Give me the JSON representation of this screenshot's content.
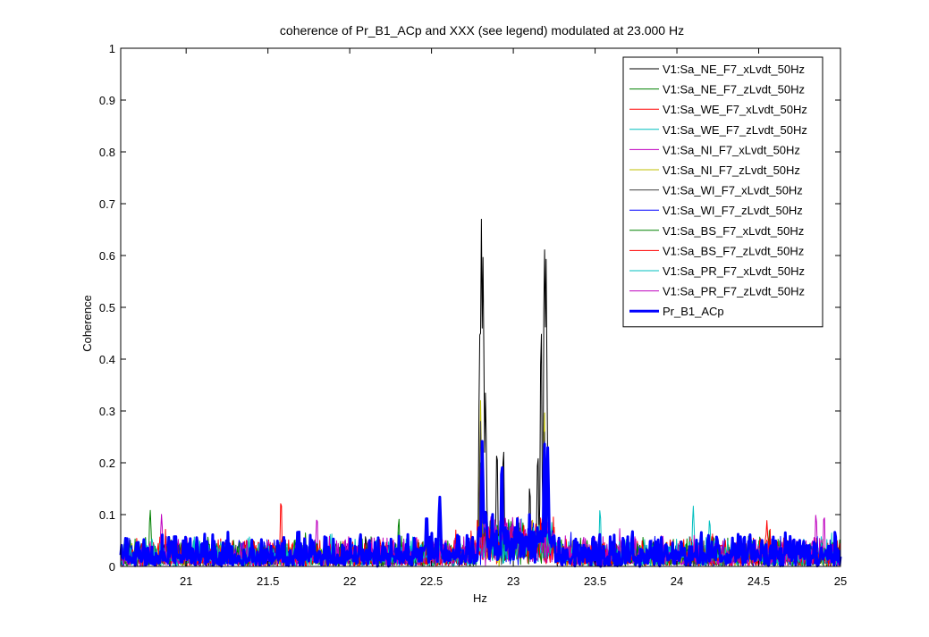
{
  "chart_data": {
    "type": "line",
    "title": "coherence of Pr_B1_ACp and XXX (see legend) modulated at 23.000 Hz",
    "xlabel": "Hz",
    "ylabel": "Coherence",
    "xlim": [
      20.6,
      25
    ],
    "ylim": [
      0,
      1
    ],
    "x_ticks": [
      "21",
      "21.5",
      "22",
      "22.5",
      "23",
      "23.5",
      "24",
      "24.5",
      "25"
    ],
    "y_ticks": [
      "0",
      "0.1",
      "0.2",
      "0.3",
      "0.4",
      "0.5",
      "0.6",
      "0.7",
      "0.8",
      "0.9",
      "1"
    ],
    "x_tick_values": [
      21,
      21.5,
      22,
      22.5,
      23,
      23.5,
      24,
      24.5,
      25
    ],
    "y_tick_values": [
      0,
      0.1,
      0.2,
      0.3,
      0.4,
      0.5,
      0.6,
      0.7,
      0.8,
      0.9,
      1
    ],
    "grid": false,
    "legend_position": "top-right",
    "series": [
      {
        "name": "V1:Sa_NE_F7_xLvdt_50Hz",
        "color": "#000000",
        "width": 1,
        "peaks": [
          [
            22.795,
            0.45
          ],
          [
            22.805,
            0.675
          ],
          [
            22.815,
            0.61
          ],
          [
            22.83,
            0.35
          ],
          [
            22.9,
            0.25
          ],
          [
            22.94,
            0.25
          ],
          [
            23.19,
            0.66
          ],
          [
            23.2,
            0.63
          ],
          [
            23.17,
            0.5
          ],
          [
            23.15,
            0.24
          ],
          [
            23.1,
            0.17
          ]
        ],
        "baseline": 0.02,
        "noise": 0.03
      },
      {
        "name": "V1:Sa_NE_F7_zLvdt_50Hz",
        "color": "#008000",
        "width": 1,
        "peaks": [
          [
            20.78,
            0.115
          ],
          [
            22.8,
            0.2
          ]
        ],
        "baseline": 0.02,
        "noise": 0.04
      },
      {
        "name": "V1:Sa_WE_F7_xLvdt_50Hz",
        "color": "#ff0000",
        "width": 1,
        "peaks": [
          [
            21.58,
            0.142
          ],
          [
            22.8,
            0.19
          ]
        ],
        "baseline": 0.02,
        "noise": 0.04
      },
      {
        "name": "V1:Sa_WE_F7_zLvdt_50Hz",
        "color": "#00bfbf",
        "width": 1,
        "peaks": [
          [
            23.53,
            0.12
          ],
          [
            24.1,
            0.12
          ]
        ],
        "baseline": 0.02,
        "noise": 0.04
      },
      {
        "name": "V1:Sa_NI_F7_xLvdt_50Hz",
        "color": "#bf00bf",
        "width": 1,
        "peaks": [
          [
            20.85,
            0.105
          ],
          [
            21.8,
            0.105
          ],
          [
            24.85,
            0.11
          ]
        ],
        "baseline": 0.02,
        "noise": 0.04
      },
      {
        "name": "V1:Sa_NI_F7_zLvdt_50Hz",
        "color": "#bfbf00",
        "width": 1,
        "peaks": [
          [
            22.8,
            0.32
          ],
          [
            23.19,
            0.32
          ]
        ],
        "baseline": 0.02,
        "noise": 0.03
      },
      {
        "name": "V1:Sa_WI_F7_xLvdt_50Hz",
        "color": "#404040",
        "width": 1,
        "peaks": [
          [
            22.8,
            0.28
          ],
          [
            23.19,
            0.28
          ]
        ],
        "baseline": 0.02,
        "noise": 0.03
      },
      {
        "name": "V1:Sa_WI_F7_zLvdt_50Hz",
        "color": "#0000ff",
        "width": 1,
        "peaks": [
          [
            22.81,
            0.24
          ],
          [
            23.19,
            0.26
          ]
        ],
        "baseline": 0.02,
        "noise": 0.04
      },
      {
        "name": "V1:Sa_BS_F7_xLvdt_50Hz",
        "color": "#008000",
        "width": 1,
        "peaks": [
          [
            22.3,
            0.1
          ]
        ],
        "baseline": 0.02,
        "noise": 0.04
      },
      {
        "name": "V1:Sa_BS_F7_zLvdt_50Hz",
        "color": "#ff0000",
        "width": 1,
        "peaks": [
          [
            24.55,
            0.09
          ]
        ],
        "baseline": 0.02,
        "noise": 0.04
      },
      {
        "name": "V1:Sa_PR_F7_xLvdt_50Hz",
        "color": "#00bfbf",
        "width": 1,
        "peaks": [
          [
            24.2,
            0.1
          ]
        ],
        "baseline": 0.02,
        "noise": 0.04
      },
      {
        "name": "V1:Sa_PR_F7_zLvdt_50Hz",
        "color": "#bf00bf",
        "width": 1,
        "peaks": [
          [
            24.9,
            0.11
          ]
        ],
        "baseline": 0.02,
        "noise": 0.04
      },
      {
        "name": "Pr_B1_ACp",
        "color": "#0000ff",
        "width": 3,
        "peaks": [
          [
            22.81,
            0.245
          ],
          [
            22.93,
            0.22
          ],
          [
            23.19,
            0.255
          ],
          [
            23.21,
            0.24
          ],
          [
            22.55,
            0.14
          ],
          [
            22.47,
            0.11
          ]
        ],
        "baseline": 0.02,
        "noise": 0.05
      }
    ]
  }
}
